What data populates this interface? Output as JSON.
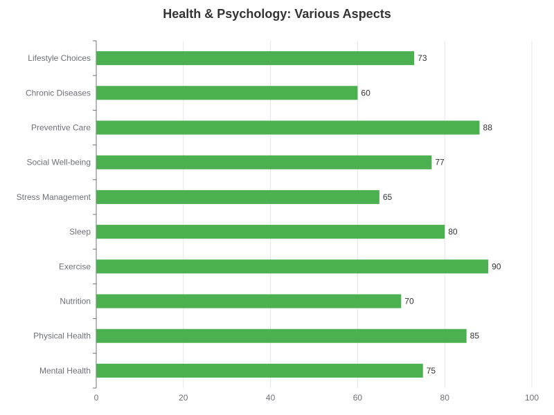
{
  "chart_data": {
    "type": "bar",
    "orientation": "horizontal",
    "title": "Health & Psychology: Various Aspects",
    "categories": [
      "Mental Health",
      "Physical Health",
      "Nutrition",
      "Exercise",
      "Sleep",
      "Stress Management",
      "Social Well-being",
      "Preventive Care",
      "Chronic Diseases",
      "Lifestyle Choices"
    ],
    "values": [
      75,
      85,
      70,
      90,
      80,
      65,
      77,
      88,
      60,
      73
    ],
    "xlabel": "",
    "ylabel": "",
    "xlim": [
      0,
      100
    ],
    "x_ticks": [
      0,
      20,
      40,
      60,
      80,
      100
    ],
    "grid": "vertical",
    "legend": "none",
    "bar_color": "#4caf50"
  }
}
